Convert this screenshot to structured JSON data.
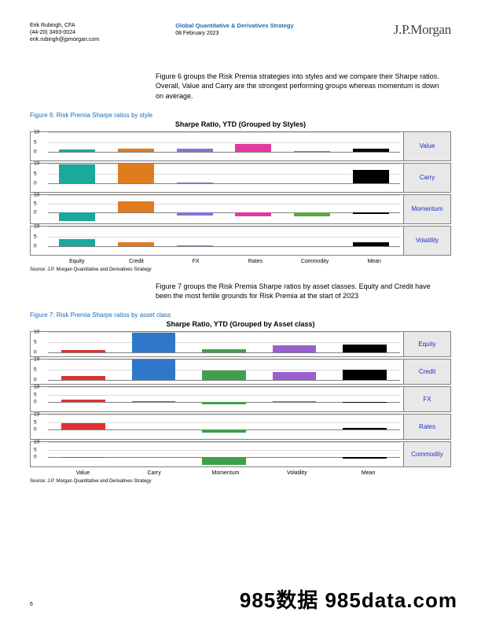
{
  "header": {
    "author": "Erik Rubingh, CFA",
    "phone": "(44-20) 3493-0024",
    "email": "erik.rubingh@jpmorgan.com",
    "title": "Global Quantitative & Derivatives Strategy",
    "date": "08 February 2023",
    "logo": "J.P.Morgan"
  },
  "para1": "Figure 6 groups the Risk Premia strategies into styles and we compare their Sharpe ratios. Overall, Value and Carry are the strongest performing groups whereas momentum is down on average.",
  "para2": "Figure 7 groups the Risk Premia Sharpe ratios by asset classes. Equity and Credit have been the most fertile grounds for Risk Premia at the start of 2023",
  "fig6": {
    "caption": "Figure 6: Risk Premia Sharpe ratios by style",
    "title": "Sharpe Ratio, YTD (Grouped by Styles)",
    "source": "Source: J.P. Morgan Quantitative and Derivatives Strategy",
    "yaxis": {
      "min": -4,
      "max": 10,
      "ticks": [
        0,
        5,
        10
      ]
    },
    "yaxis_mom": {
      "min": -6,
      "max": 10,
      "ticks": [
        0,
        5,
        10
      ]
    },
    "categories": [
      "Equity",
      "Credit",
      "FX",
      "Rates",
      "Commodity",
      "Mean"
    ],
    "colors": {
      "Equity": "#1aa99a",
      "Credit": "#e07b1f",
      "FX": "#8a72d4",
      "Rates": "#e43aa0",
      "Commodity": "#5fa640",
      "Mean": "#000000"
    },
    "panels": [
      {
        "label": "Value",
        "values": [
          1.2,
          1.8,
          1.7,
          4.2,
          0.5,
          1.8
        ]
      },
      {
        "label": "Carry",
        "values": [
          9.5,
          10.0,
          0.6,
          null,
          null,
          6.8
        ]
      },
      {
        "label": "Momentum",
        "values": [
          -4.8,
          6.2,
          -1.6,
          -2.2,
          -2.0,
          -1.0
        ],
        "neg": true
      },
      {
        "label": "Volatility",
        "values": [
          3.6,
          2.0,
          0.5,
          null,
          null,
          2.0
        ]
      }
    ]
  },
  "fig7": {
    "caption": "Figure 7: Risk Premia Sharpe ratios by asset class",
    "title": "Sharpe Ratio, YTD (Grouped by Asset class)",
    "source": "Source: J.P. Morgan Quantitative and Derivatives Strategy",
    "yaxis": {
      "min": -2,
      "max": 10,
      "ticks": [
        0,
        5,
        10
      ]
    },
    "yaxis_neg": {
      "min": -6,
      "max": 10,
      "ticks": [
        0,
        5,
        10
      ]
    },
    "categories": [
      "Value",
      "Carry",
      "Momentum",
      "Volatility",
      "Mean"
    ],
    "colors": {
      "Value": "#e03030",
      "Carry": "#2f77c9",
      "Momentum": "#3fa04a",
      "Volatility": "#9a5fcf",
      "Mean": "#000000"
    },
    "panels": [
      {
        "label": "Equity",
        "values": [
          1.2,
          9.8,
          1.6,
          3.5,
          3.9
        ]
      },
      {
        "label": "Credit",
        "values": [
          1.8,
          10.0,
          4.4,
          3.9,
          5.0
        ]
      },
      {
        "label": "FX",
        "values": [
          1.8,
          0.5,
          -1.4,
          0.5,
          0.3
        ],
        "neg": true
      },
      {
        "label": "Rates",
        "values": [
          4.2,
          null,
          -2.0,
          null,
          1.0
        ],
        "neg": true
      },
      {
        "label": "Commodity",
        "values": [
          0.4,
          null,
          -4.8,
          null,
          -1.0
        ],
        "neg": true
      }
    ]
  },
  "page_number": "6",
  "watermark": "985数据 985data.com"
}
